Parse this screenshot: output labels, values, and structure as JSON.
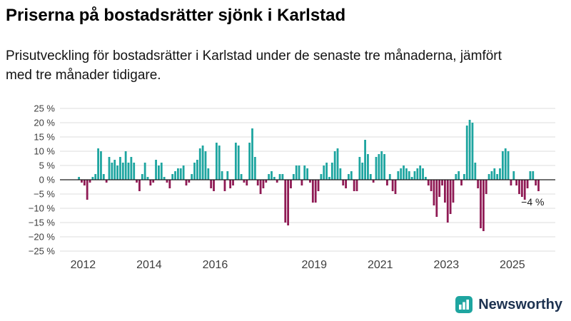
{
  "header": {
    "title": "Priserna på bostadsrätter sjönk i Karlstad",
    "subtitle": "Prisutveckling för bostadsrätter i Karlstad under de senaste tre månaderna, jämfört med tre månader tidigare."
  },
  "chart_data": {
    "type": "bar",
    "title": "Priserna på bostadsrätter sjönk i Karlstad",
    "subtitle": "Prisutveckling för bostadsrätter i Karlstad under de senaste tre månaderna, jämfört med tre månader tidigare.",
    "unit": "%",
    "ylim": [
      -25,
      25
    ],
    "yticks": [
      25,
      20,
      15,
      10,
      5,
      0,
      -5,
      -10,
      -15,
      -20,
      -25
    ],
    "ytick_labels": [
      "25 %",
      "20 %",
      "15 %",
      "10 %",
      "5 %",
      "0 %",
      "−5 %",
      "−10 %",
      "−15 %",
      "−20 %",
      "−25 %"
    ],
    "xticks": [
      2012,
      2014,
      2016,
      2019,
      2021,
      2023,
      2025
    ],
    "grid": true,
    "legend": "none",
    "colors": {
      "positive": "#1ea5a0",
      "negative": "#8f1a54"
    },
    "annotation": {
      "label": "−4 %",
      "value": -4
    },
    "years": [
      {
        "year": 2011,
        "first_month": 11,
        "values": [
          1,
          -1
        ]
      },
      {
        "year": 2012,
        "first_month": 1,
        "values": [
          -2,
          -7,
          -1,
          1,
          2,
          11,
          10,
          2,
          -1,
          8,
          6,
          7
        ]
      },
      {
        "year": 2013,
        "first_month": 1,
        "values": [
          5,
          8,
          6,
          10,
          6,
          8,
          6,
          -1,
          -4,
          2,
          6,
          1
        ]
      },
      {
        "year": 2014,
        "first_month": 1,
        "values": [
          -2,
          -1,
          7,
          5,
          6,
          1,
          -1,
          -3,
          2,
          3,
          4,
          4
        ]
      },
      {
        "year": 2015,
        "first_month": 1,
        "values": [
          5,
          -2,
          -1,
          2,
          6,
          7,
          11,
          12,
          10,
          4,
          -3,
          -4
        ]
      },
      {
        "year": 2016,
        "first_month": 1,
        "values": [
          13,
          12,
          3,
          -4,
          3,
          -3,
          -2,
          13,
          12,
          2,
          -1,
          -2
        ]
      },
      {
        "year": 2017,
        "first_month": 1,
        "values": [
          13,
          18,
          8,
          -2,
          -5,
          -3,
          -1,
          2,
          3,
          1,
          -1,
          2
        ]
      },
      {
        "year": 2018,
        "first_month": 1,
        "values": [
          2,
          -15,
          -16,
          -3,
          2,
          5,
          5,
          -2,
          5,
          4,
          -1,
          -8
        ]
      },
      {
        "year": 2019,
        "first_month": 1,
        "values": [
          -8,
          -4,
          2,
          5,
          6,
          1,
          6,
          10,
          11,
          4,
          -2,
          -3
        ]
      },
      {
        "year": 2020,
        "first_month": 1,
        "values": [
          2,
          3,
          -4,
          -4,
          8,
          6,
          14,
          9,
          2,
          -1,
          8,
          9
        ]
      },
      {
        "year": 2021,
        "first_month": 1,
        "values": [
          10,
          9,
          -2,
          2,
          -4,
          -5,
          3,
          4,
          5,
          4,
          3,
          1
        ]
      },
      {
        "year": 2022,
        "first_month": 1,
        "values": [
          3,
          4,
          5,
          4,
          1,
          -2,
          -4,
          -9,
          -13,
          -6,
          -2,
          -8
        ]
      },
      {
        "year": 2023,
        "first_month": 1,
        "values": [
          -15,
          -12,
          -8,
          2,
          3,
          -2,
          2,
          19,
          21,
          20,
          6,
          -3
        ]
      },
      {
        "year": 2024,
        "first_month": 1,
        "values": [
          -17,
          -18,
          -5,
          2,
          3,
          4,
          2,
          4,
          10,
          11,
          10,
          -2
        ]
      },
      {
        "year": 2025,
        "first_month": 1,
        "values": [
          3,
          -2,
          -5,
          -6,
          -7,
          -3,
          3,
          3,
          -2,
          -4
        ]
      }
    ]
  },
  "footer": {
    "brand": "Newsworthy",
    "logo_icon": "bar-chart-icon",
    "brand_color": "#1d3250",
    "logo_color": "#1ea5a0"
  }
}
